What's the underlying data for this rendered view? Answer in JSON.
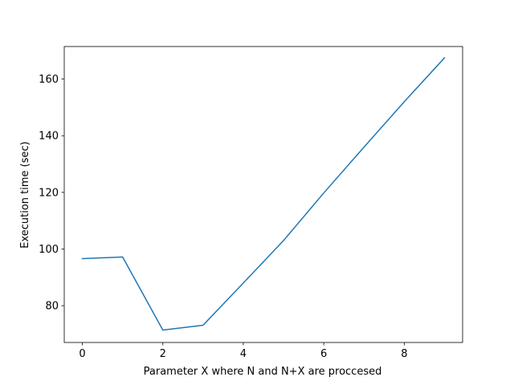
{
  "chart_data": {
    "type": "line",
    "title": "",
    "xlabel": "Parameter X where N and N+X are proccesed",
    "ylabel": "Execution time (sec)",
    "xlim": [
      -0.45,
      9.45
    ],
    "ylim": [
      67.0,
      171.5
    ],
    "xticks": [
      0,
      2,
      4,
      6,
      8
    ],
    "yticks": [
      80,
      100,
      120,
      140,
      160
    ],
    "grid": false,
    "series": [
      {
        "color": "#1f77b4",
        "x": [
          0,
          1,
          2,
          3,
          4,
          5,
          6,
          7,
          8,
          9
        ],
        "y": [
          96.6,
          97.2,
          71.4,
          73.1,
          88.0,
          103.0,
          119.8,
          136.0,
          152.0,
          167.5
        ]
      }
    ]
  }
}
